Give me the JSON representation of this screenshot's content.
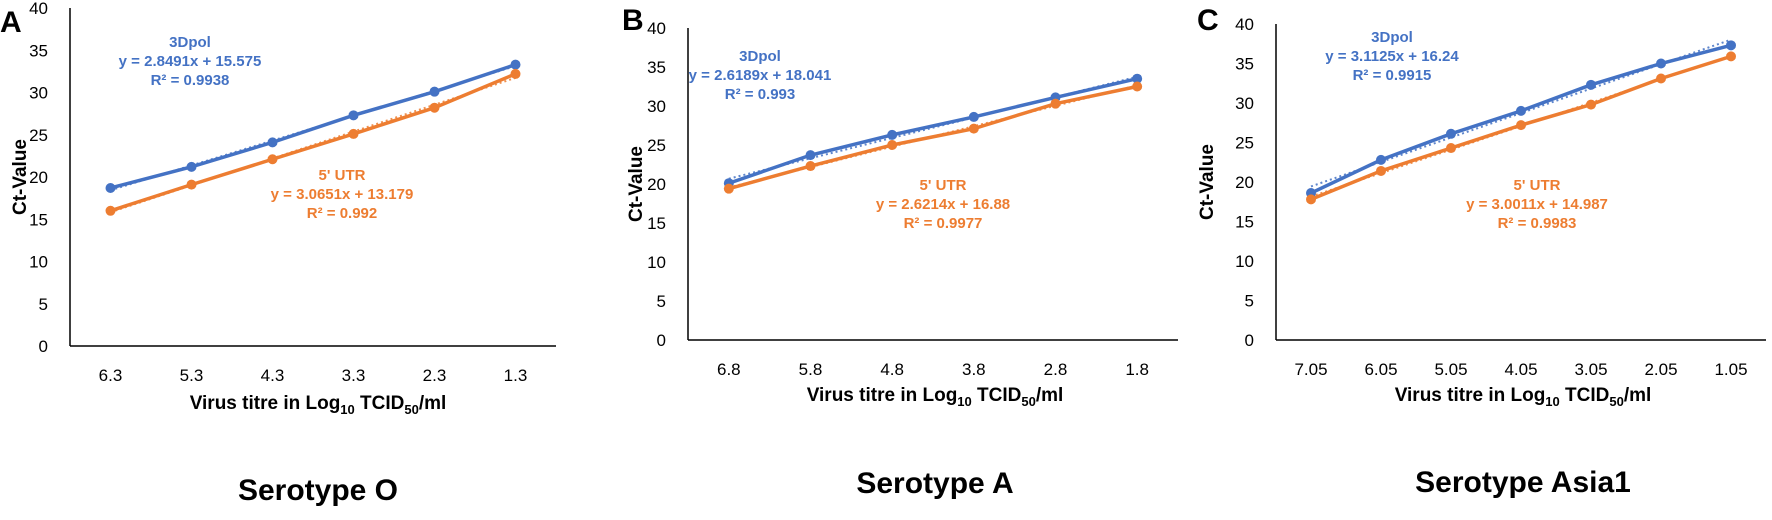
{
  "colors": {
    "series_3dpol": "#4472C4",
    "series_5utr": "#ED7D31",
    "axis": "#000000"
  },
  "chart_data": [
    {
      "type": "line",
      "panel": "A",
      "caption": "Serotype O",
      "x": [
        "6.3",
        "5.3",
        "4.3",
        "3.3",
        "2.3",
        "1.3"
      ],
      "ylabel": "Ct-Value",
      "xlabel": {
        "main": "Virus titre in Log",
        "sub1": "10",
        "mid": " TCID",
        "sub2": "50",
        "end": "/ml"
      },
      "ylim": [
        0,
        40
      ],
      "yticks": [
        0,
        5,
        10,
        15,
        20,
        25,
        30,
        35,
        40
      ],
      "trendlines": true,
      "series": [
        {
          "name": "3Dpol",
          "values": [
            18.7,
            21.2,
            24.1,
            27.3,
            30.1,
            33.3
          ],
          "equation": "y = 2.8491x + 15.575",
          "r2": "R² = 0.9938",
          "color": "#4472C4"
        },
        {
          "name": "5' UTR",
          "values": [
            16.0,
            19.1,
            22.1,
            25.1,
            28.2,
            32.2
          ],
          "equation": "y = 3.0651x + 13.179",
          "r2": "R² = 0.992",
          "color": "#ED7D31"
        }
      ]
    },
    {
      "type": "line",
      "panel": "B",
      "caption": "Serotype A",
      "x": [
        "6.8",
        "5.8",
        "4.8",
        "3.8",
        "2.8",
        "1.8"
      ],
      "ylabel": "Ct-Value",
      "xlabel": {
        "main": "Virus titre in Log",
        "sub1": "10",
        "mid": " TCID",
        "sub2": "50",
        "end": "/ml"
      },
      "ylim": [
        0,
        40
      ],
      "yticks": [
        0,
        5,
        10,
        15,
        20,
        25,
        30,
        35,
        40
      ],
      "trendlines": true,
      "series": [
        {
          "name": "3Dpol",
          "values": [
            20.1,
            23.7,
            26.3,
            28.6,
            31.1,
            33.5
          ],
          "equation": "y = 2.6189x + 18.041",
          "r2": "R² = 0.993",
          "color": "#4472C4"
        },
        {
          "name": "5' UTR",
          "values": [
            19.4,
            22.3,
            25.0,
            27.1,
            30.3,
            32.5
          ],
          "equation": "y = 2.6214x + 16.88",
          "r2": "R² = 0.9977",
          "color": "#ED7D31"
        }
      ]
    },
    {
      "type": "line",
      "panel": "C",
      "caption": "Serotype Asia1",
      "x": [
        "7.05",
        "6.05",
        "5.05",
        "4.05",
        "3.05",
        "2.05",
        "1.05"
      ],
      "ylabel": "Ct-Value",
      "xlabel": {
        "main": "Virus titre in Log",
        "sub1": "10",
        "mid": " TCID",
        "sub2": "50",
        "end": "/ml"
      },
      "ylim": [
        0,
        40
      ],
      "yticks": [
        0,
        5,
        10,
        15,
        20,
        25,
        30,
        35,
        40
      ],
      "trendlines": true,
      "series": [
        {
          "name": "3Dpol",
          "values": [
            18.6,
            22.8,
            26.1,
            29.0,
            32.3,
            35.0,
            37.3
          ],
          "equation": "y = 3.1125x + 16.24",
          "r2": "R² = 0.9915",
          "color": "#4472C4"
        },
        {
          "name": "5' UTR",
          "values": [
            17.8,
            21.4,
            24.3,
            27.2,
            29.8,
            33.1,
            35.9
          ],
          "equation": "y = 3.0011x + 14.987",
          "r2": "R² = 0.9983",
          "color": "#ED7D31"
        }
      ]
    }
  ]
}
